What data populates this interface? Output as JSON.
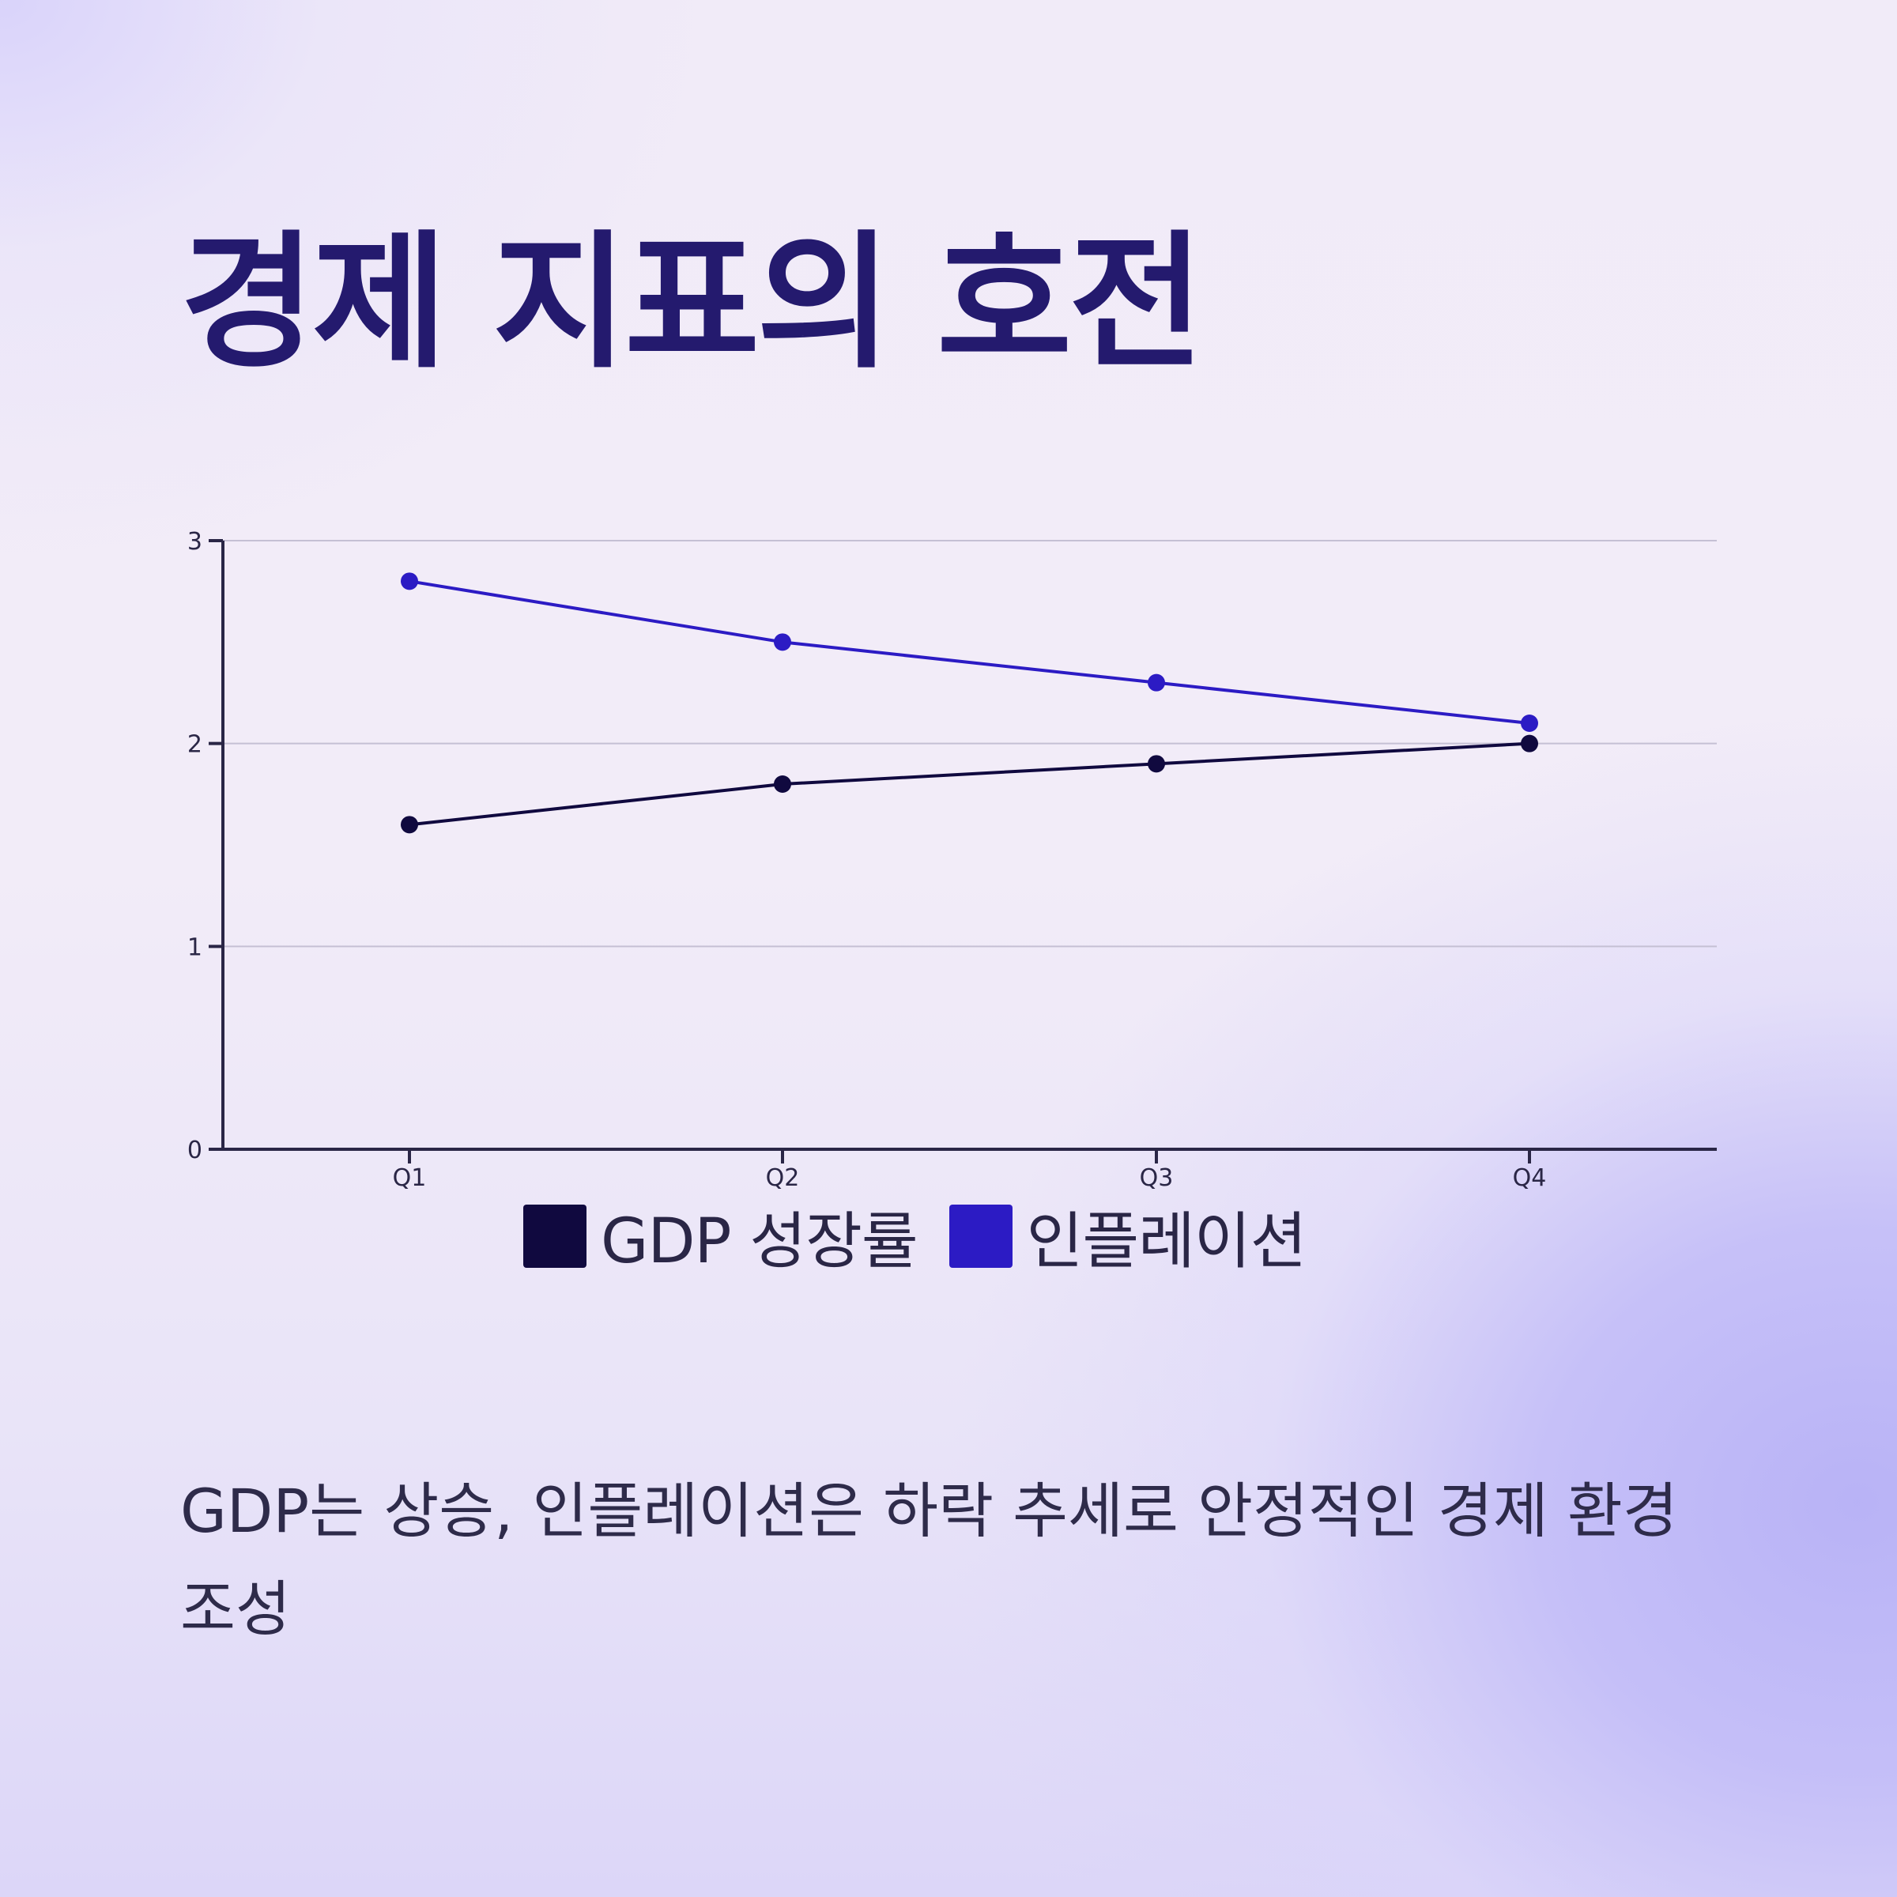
{
  "header": {
    "title": "경제 지표의 호전"
  },
  "caption": "GDP는 상승, 인플레이션은 하락 추세로 안정적인 경제 환경 조성",
  "colors": {
    "title": "#241a6e",
    "gdp": "#10093f",
    "inflation": "#2c1bc4",
    "grid": "#c5c0d4",
    "axis": "#2a2646"
  },
  "chart_data": {
    "type": "line",
    "title": "",
    "xlabel": "",
    "ylabel": "",
    "categories": [
      "Q1",
      "Q2",
      "Q3",
      "Q4"
    ],
    "ylim": [
      0,
      3
    ],
    "yticks": [
      "0",
      "1",
      "2",
      "3"
    ],
    "grid": true,
    "legend": "bottom-center",
    "series": [
      {
        "name": "GDP 성장률",
        "color": "#10093f",
        "values": [
          1.6,
          1.8,
          1.9,
          2.0
        ]
      },
      {
        "name": "인플레이션",
        "color": "#2c1bc4",
        "values": [
          2.8,
          2.5,
          2.3,
          2.1
        ]
      }
    ]
  }
}
